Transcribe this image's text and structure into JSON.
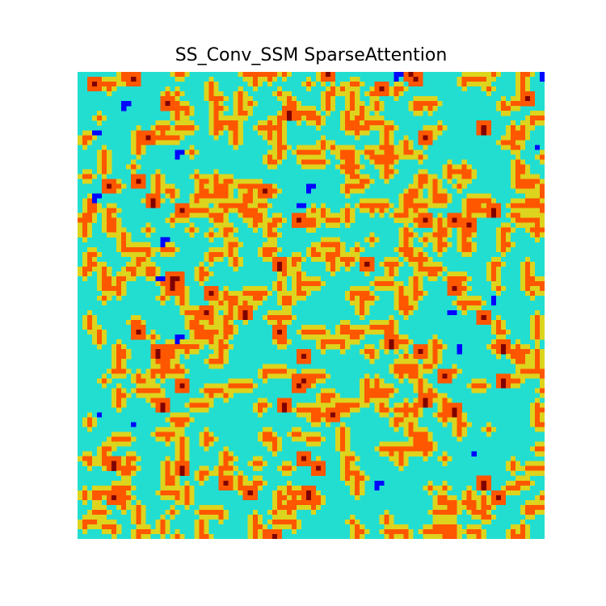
{
  "chart_data": {
    "type": "heatmap",
    "title": "SS_Conv_SSM SparseAttention",
    "xlabel": "",
    "ylabel": "",
    "axes_visible": false,
    "grid": false,
    "legend": "none",
    "colormap": "jet",
    "colormap_stops": [
      "#00007f",
      "#0000ff",
      "#007fff",
      "#2bf6c6",
      "#cbfa2c",
      "#ff8a00",
      "#ff1900",
      "#7f0000"
    ],
    "rows": 96,
    "cols": 96,
    "value_range": [
      0,
      1
    ],
    "background_value": 0.4,
    "edge_value": 0.62,
    "core_value": 0.78,
    "peak_value": 1.0,
    "low_value": 0.15,
    "pattern_description_seed": 20240611,
    "blob_count": 430,
    "low_blob_count": 38,
    "peak_blob_count": 60
  }
}
